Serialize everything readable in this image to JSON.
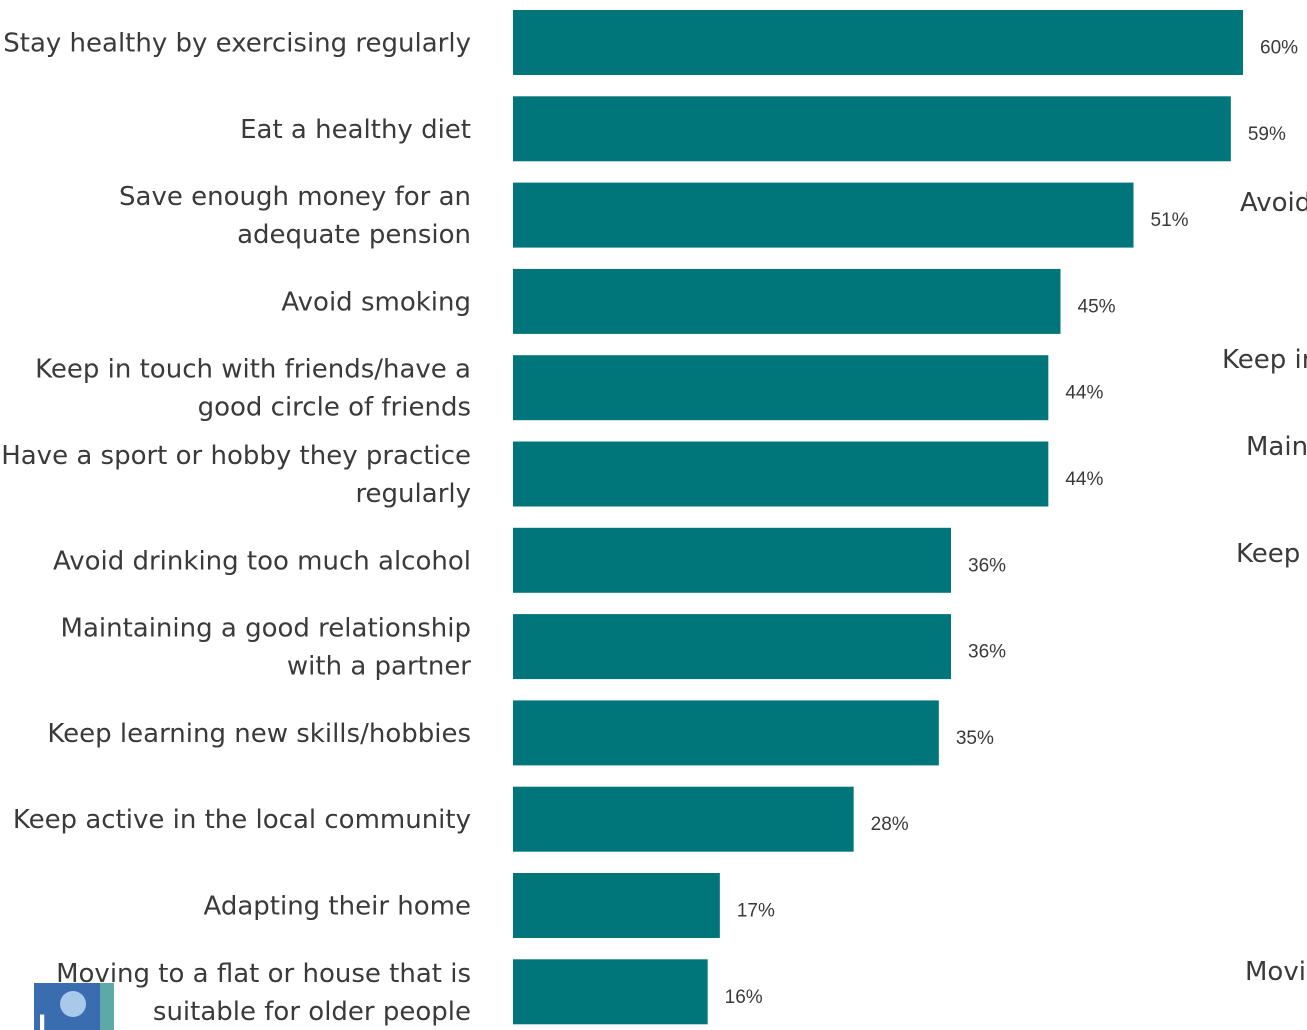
{
  "chart_data": {
    "type": "bar",
    "orientation": "horizontal",
    "categories": [
      [
        "Stay healthy by exercising regularly"
      ],
      [
        "Eat a healthy diet"
      ],
      [
        "Save enough money for an",
        "adequate pension"
      ],
      [
        "Avoid smoking"
      ],
      [
        "Keep in touch with friends/have a",
        "good circle of friends"
      ],
      [
        "Have a sport or hobby they practice",
        "regularly"
      ],
      [
        "Avoid drinking too much alcohol"
      ],
      [
        "Maintaining a good relationship",
        "with a partner"
      ],
      [
        "Keep learning new skills/hobbies"
      ],
      [
        "Keep active in the local community"
      ],
      [
        "Adapting their home"
      ],
      [
        "Moving to a flat or house that is",
        "suitable for older people"
      ]
    ],
    "values": [
      60,
      59,
      51,
      45,
      44,
      44,
      36,
      36,
      35,
      28,
      17,
      16
    ],
    "value_labels": [
      "60%",
      "59%",
      "51%",
      "45%",
      "44%",
      "44%",
      "36%",
      "36%",
      "35%",
      "28%",
      "17%",
      "16%"
    ],
    "xlim": [
      0,
      60
    ],
    "bar_color": "#00767b",
    "grid": false,
    "legend": "none",
    "title": "",
    "xlabel": "",
    "ylabel": "",
    "ghost_labels": [
      "Avoid",
      "Keep in",
      "Main",
      "Keep",
      "Movi"
    ]
  },
  "colors": {
    "bar": "#00767b",
    "text": "#3a3a3a",
    "logo_blue": "#3a6db0",
    "logo_teal": "#5fa8a8"
  },
  "logo": {
    "icon": "organization-logo-icon",
    "glyph": "l"
  }
}
